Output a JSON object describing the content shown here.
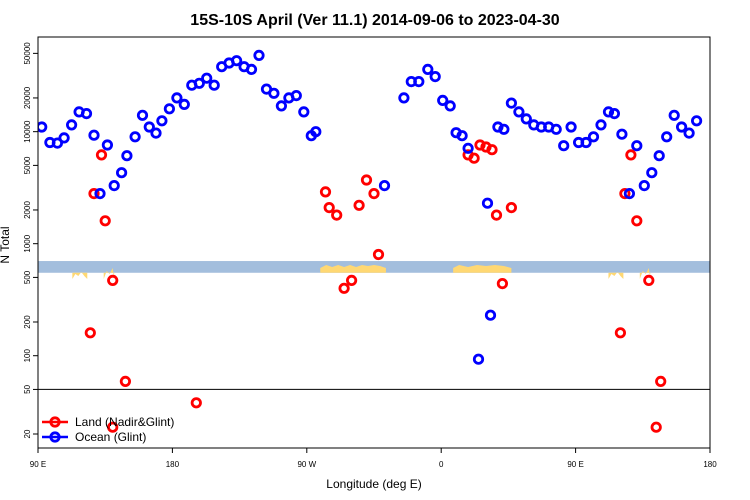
{
  "chart_data": {
    "type": "scatter",
    "title": "15S-10S April (Ver 11.1)   2014-09-06 to 2023-04-30",
    "xlabel": "Longitude (deg E)",
    "ylabel": "N Total",
    "x_scale": "longitude, 90E to 180 spanning 450 degrees",
    "y_scale": "log",
    "xlim": [
      90,
      540
    ],
    "ylim": [
      15,
      70000
    ],
    "x_ticks": [
      {
        "value": 90,
        "label": "90 E"
      },
      {
        "value": 180,
        "label": "180"
      },
      {
        "value": 270,
        "label": "90 W"
      },
      {
        "value": 360,
        "label": "0"
      },
      {
        "value": 450,
        "label": "90 E"
      },
      {
        "value": 540,
        "label": "180"
      }
    ],
    "y_ticks": [
      {
        "value": 20,
        "label": "20"
      },
      {
        "value": 50,
        "label": "50"
      },
      {
        "value": 100,
        "label": "100"
      },
      {
        "value": 200,
        "label": "200"
      },
      {
        "value": 500,
        "label": "500"
      },
      {
        "value": 1000,
        "label": "1000"
      },
      {
        "value": 2000,
        "label": "2000"
      },
      {
        "value": 5000,
        "label": "5000"
      },
      {
        "value": 10000,
        "label": "10000"
      },
      {
        "value": 20000,
        "label": "20000"
      },
      {
        "value": 50000,
        "label": "50000"
      }
    ],
    "legend_divider_y": 50,
    "land_band": {
      "y_min": 550,
      "y_max": 700,
      "ocean_color": "#a3bedd",
      "land_color": "#ffd873"
    },
    "series": [
      {
        "name": "Land (Nadir&Glint)",
        "color": "#ff0000",
        "points": [
          [
            125,
            160
          ],
          [
            127.5,
            2800
          ],
          [
            132.5,
            6200
          ],
          [
            135,
            1600
          ],
          [
            140,
            470
          ],
          [
            140,
            23
          ],
          [
            148.5,
            59
          ],
          [
            196,
            38
          ],
          [
            282.5,
            2900
          ],
          [
            285,
            2100
          ],
          [
            290,
            1800
          ],
          [
            295,
            400
          ],
          [
            300,
            470
          ],
          [
            305,
            2200
          ],
          [
            310,
            3700
          ],
          [
            315,
            2800
          ],
          [
            318,
            800
          ],
          [
            378,
            6200
          ],
          [
            382,
            5800
          ],
          [
            386,
            7600
          ],
          [
            390,
            7300
          ],
          [
            394,
            6900
          ],
          [
            397,
            1800
          ],
          [
            401,
            440
          ],
          [
            407,
            2100
          ],
          [
            480,
            160
          ],
          [
            483,
            2800
          ],
          [
            487,
            6200
          ],
          [
            491,
            1600
          ],
          [
            499,
            470
          ],
          [
            504,
            23
          ],
          [
            507,
            59
          ]
        ]
      },
      {
        "name": "Ocean (Glint)",
        "color": "#0000ff",
        "points": [
          [
            92.5,
            11000
          ],
          [
            98,
            8000
          ],
          [
            103,
            7900
          ],
          [
            107.5,
            8800
          ],
          [
            112.5,
            11500
          ],
          [
            117.5,
            15000
          ],
          [
            122.5,
            14500
          ],
          [
            127.5,
            9300
          ],
          [
            131.5,
            2800
          ],
          [
            136.5,
            7600
          ],
          [
            141,
            3300
          ],
          [
            146,
            4300
          ],
          [
            149.5,
            6100
          ],
          [
            155,
            9000
          ],
          [
            160,
            14000
          ],
          [
            164.5,
            11000
          ],
          [
            169,
            9700
          ],
          [
            173,
            12500
          ],
          [
            178,
            16000
          ],
          [
            183,
            20000
          ],
          [
            188,
            17500
          ],
          [
            193,
            26000
          ],
          [
            198,
            27000
          ],
          [
            203,
            30000
          ],
          [
            208,
            26000
          ],
          [
            213,
            38000
          ],
          [
            218,
            41000
          ],
          [
            223,
            43000
          ],
          [
            228,
            38000
          ],
          [
            233,
            36000
          ],
          [
            238,
            48000
          ],
          [
            243,
            24000
          ],
          [
            248,
            22000
          ],
          [
            253,
            17000
          ],
          [
            258,
            20000
          ],
          [
            263,
            21000
          ],
          [
            268,
            15000
          ],
          [
            273,
            9200
          ],
          [
            276,
            10000
          ],
          [
            322,
            3300
          ],
          [
            335,
            20000
          ],
          [
            340,
            28000
          ],
          [
            345,
            28000
          ],
          [
            351,
            36000
          ],
          [
            356,
            31000
          ],
          [
            361,
            19000
          ],
          [
            366,
            17000
          ],
          [
            370,
            9800
          ],
          [
            374,
            9200
          ],
          [
            378,
            7100
          ],
          [
            385,
            93
          ],
          [
            391,
            2300
          ],
          [
            393,
            230
          ],
          [
            398,
            11000
          ],
          [
            402,
            10500
          ],
          [
            407,
            18000
          ],
          [
            412,
            15000
          ],
          [
            417,
            13000
          ],
          [
            422,
            11500
          ],
          [
            427,
            11000
          ],
          [
            432,
            11000
          ],
          [
            437,
            10500
          ],
          [
            442,
            7500
          ],
          [
            447,
            11000
          ],
          [
            452,
            8000
          ],
          [
            457,
            8000
          ],
          [
            462,
            9000
          ],
          [
            467,
            11500
          ],
          [
            472,
            15000
          ],
          [
            476,
            14500
          ],
          [
            481,
            9500
          ],
          [
            486,
            2800
          ],
          [
            491,
            7500
          ],
          [
            496,
            3300
          ],
          [
            501,
            4300
          ],
          [
            506,
            6100
          ],
          [
            511,
            9000
          ],
          [
            516,
            14000
          ],
          [
            521,
            11000
          ],
          [
            526,
            9700
          ],
          [
            531,
            12500
          ]
        ]
      }
    ]
  }
}
